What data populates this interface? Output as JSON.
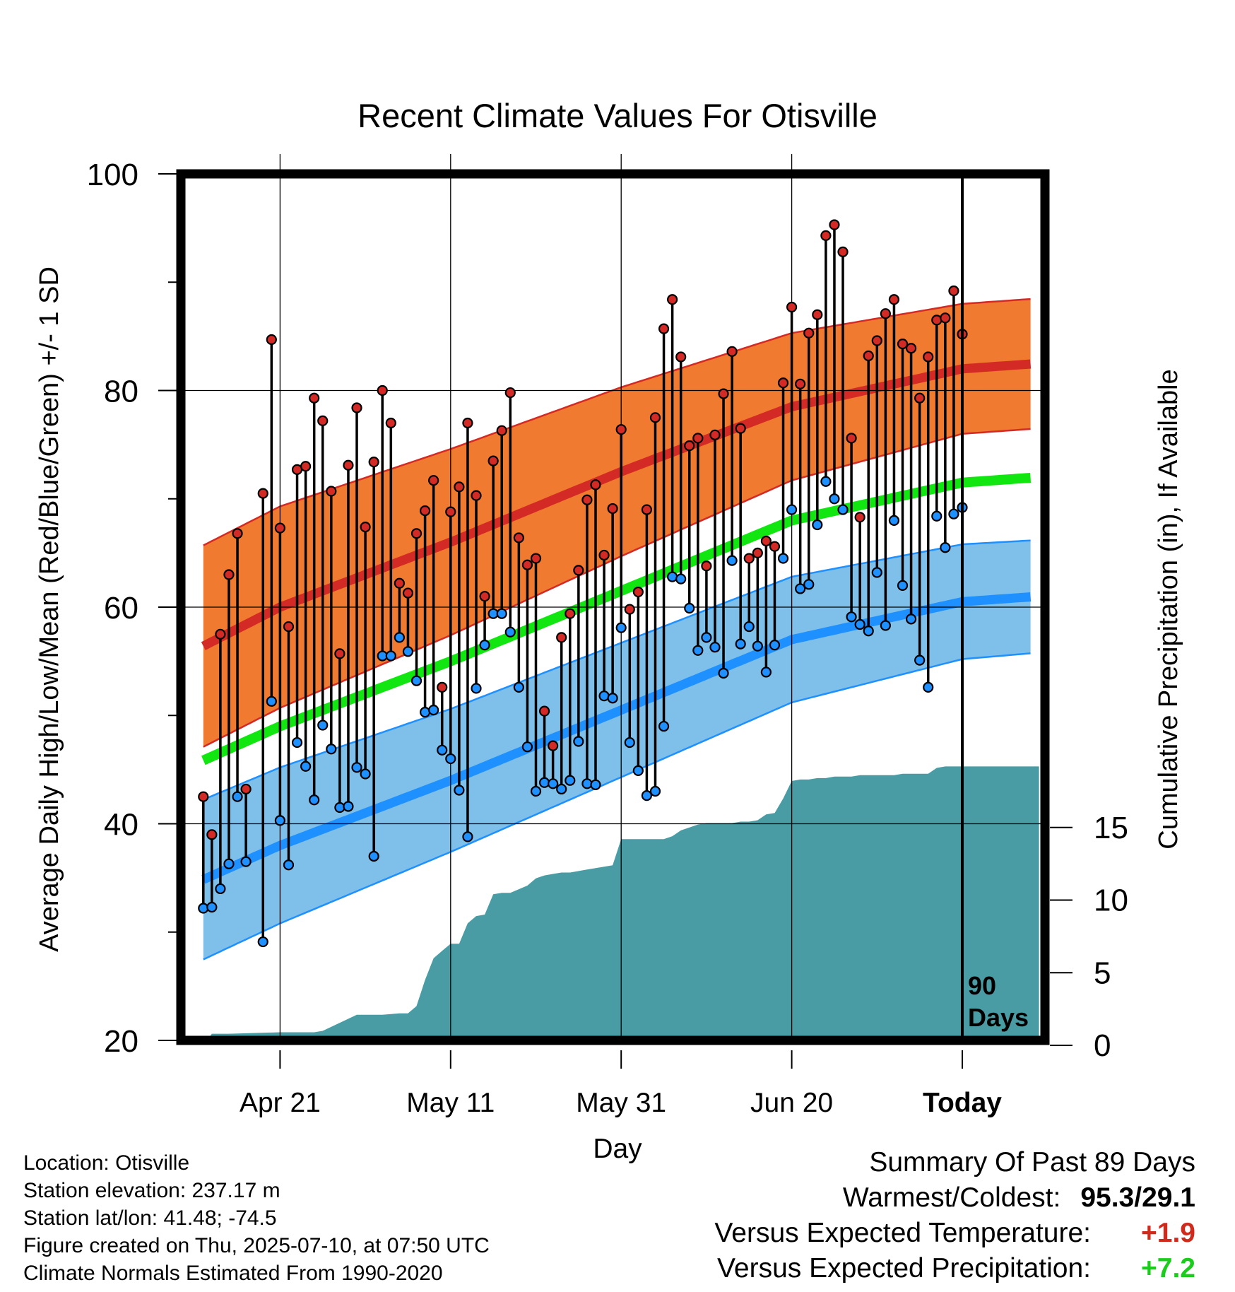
{
  "chart_data": {
    "type": "line",
    "title": "Recent Climate Values For Otisville",
    "xlabel": "Day",
    "ylabel": "Average Daily High/Low/Mean (Red/Blue/Green) +/- 1 SD",
    "y2label": "Cumulative Precipitation (in), If Available",
    "ylim": [
      20,
      100
    ],
    "y_ticks": [
      "20",
      "40",
      "60",
      "80",
      "100"
    ],
    "y2lim": [
      0,
      60
    ],
    "y2_ticks": [
      "0",
      "5",
      "10",
      "15"
    ],
    "x_range_days": [
      -89,
      0
    ],
    "x_ticks": [
      {
        "day": -80,
        "label": "Apr 21"
      },
      {
        "day": -60,
        "label": "May 11"
      },
      {
        "day": -40,
        "label": "May 31"
      },
      {
        "day": -20,
        "label": "Jun 20"
      },
      {
        "day": 0,
        "label": "Today"
      }
    ],
    "today_label": "90 Days",
    "grid": true,
    "colors": {
      "high_band": "#f07a30",
      "high_mean": "#d42a25",
      "low_band": "#7fc0ea",
      "low_mean": "#1e90ff",
      "mean_line": "#11e611",
      "precip": "#4a9ca4",
      "high_dot": "#d42a25",
      "low_dot": "#1e90ff"
    },
    "normals": {
      "days": [
        -90,
        -80,
        -60,
        -40,
        -20,
        0,
        9
      ],
      "high_mean": [
        56,
        60,
        66,
        72.5,
        78.5,
        82,
        82.5
      ],
      "high_sd": [
        9.3,
        9.3,
        8.6,
        7.8,
        6.8,
        6.0,
        6.0
      ],
      "low_mean": [
        34.5,
        38,
        44,
        50.5,
        57,
        60.5,
        61
      ],
      "low_sd": [
        7.4,
        7.2,
        6.6,
        6.2,
        5.8,
        5.3,
        5.2
      ],
      "mean": [
        45.5,
        49,
        55,
        61.5,
        68,
        71.5,
        72
      ]
    },
    "daily": {
      "start_day": -89,
      "high": [
        42.5,
        39,
        57.5,
        63,
        66.8,
        43.2,
        null,
        70.5,
        84.7,
        67.3,
        58.2,
        72.7,
        73,
        79.3,
        77.2,
        70.7,
        55.7,
        73.1,
        78.4,
        67.4,
        73.4,
        80,
        77,
        62.2,
        61.3,
        66.8,
        68.9,
        71.7,
        52.6,
        68.8,
        71.1,
        77,
        70.3,
        61,
        73.5,
        76.3,
        79.8,
        66.4,
        63.9,
        64.5,
        50.4,
        47.2,
        57.2,
        59.4,
        63.4,
        69.9,
        71.3,
        64.8,
        69.1,
        76.4,
        59.8,
        61.4,
        69,
        77.5,
        85.7,
        88.4,
        83.1,
        74.9,
        75.6,
        63.8,
        75.9,
        79.7,
        83.6,
        76.5,
        64.5,
        65,
        66.1,
        65.6,
        80.7,
        87.7,
        80.6,
        85.3,
        87,
        94.3,
        95.3,
        92.8,
        75.6,
        68.3,
        83.2,
        84.6,
        87.1,
        88.4,
        84.3,
        83.9,
        79.3,
        83.1,
        86.5,
        86.7,
        89.2,
        85.2
      ],
      "low": [
        32.2,
        32.3,
        34,
        36.3,
        42.5,
        36.5,
        null,
        29.1,
        51.3,
        40.3,
        36.2,
        47.5,
        45.3,
        42.2,
        49.1,
        46.9,
        41.5,
        41.6,
        45.2,
        44.6,
        37,
        55.5,
        55.5,
        57.2,
        55.9,
        53.2,
        50.3,
        50.5,
        46.8,
        46,
        43.1,
        38.8,
        52.5,
        56.5,
        59.4,
        59.4,
        57.7,
        52.6,
        47.1,
        43,
        43.8,
        43.7,
        43.2,
        44,
        47.6,
        43.7,
        43.6,
        51.8,
        51.6,
        58.1,
        47.5,
        44.9,
        42.6,
        43,
        49,
        62.8,
        62.6,
        59.9,
        56,
        57.2,
        56.3,
        53.9,
        64.3,
        56.6,
        58.2,
        56.4,
        54,
        56.5,
        64.5,
        69,
        61.7,
        62.1,
        67.6,
        71.6,
        70,
        69,
        59.1,
        58.4,
        57.8,
        63.2,
        58.3,
        68,
        62,
        58.9,
        55.1,
        52.6,
        68.4,
        65.5,
        68.6,
        69.2
      ]
    },
    "precip_cumulative": {
      "days": [
        -89,
        -88,
        -87,
        -86,
        -80,
        -76,
        -75,
        -71,
        -69,
        -68,
        -66,
        -65,
        -64,
        -63,
        -62,
        -61,
        -60,
        -59,
        -58,
        -57,
        -56,
        -55,
        -54,
        -53,
        -51,
        -50,
        -49,
        -48,
        -47,
        -46,
        -45,
        -44,
        -43,
        -42,
        -41,
        -40,
        -39,
        -38,
        -37,
        -36,
        -35,
        -34,
        -33,
        -32,
        -31,
        -30,
        -29,
        -28,
        -27,
        -26,
        -25,
        -24,
        -23,
        -22,
        -21,
        -20,
        -19,
        -18,
        -17,
        -16,
        -15,
        -14,
        -13,
        -12,
        -11,
        -10,
        -9,
        -8,
        -7,
        -6,
        -5,
        -4,
        -3,
        -2,
        -1,
        0,
        9
      ],
      "values": [
        0.0,
        0.8,
        0.8,
        0.8,
        0.9,
        0.9,
        1.0,
        2.1,
        2.1,
        2.1,
        2.2,
        2.2,
        2.7,
        4.5,
        6.0,
        6.5,
        7.0,
        7.0,
        8.4,
        8.9,
        9.0,
        10.4,
        10.5,
        10.5,
        11.0,
        11.5,
        11.7,
        11.8,
        11.9,
        11.9,
        12.0,
        12.1,
        12.2,
        12.3,
        12.4,
        14.2,
        14.2,
        14.2,
        14.2,
        14.2,
        14.2,
        14.4,
        14.8,
        15.0,
        15.2,
        15.3,
        15.3,
        15.3,
        15.3,
        15.4,
        15.4,
        15.5,
        15.9,
        16.0,
        17.0,
        18.2,
        18.3,
        18.3,
        18.4,
        18.4,
        18.5,
        18.5,
        18.5,
        18.6,
        18.6,
        18.6,
        18.6,
        18.6,
        18.7,
        18.7,
        18.7,
        18.7,
        19.1,
        19.2,
        19.2,
        19.2,
        19.2
      ]
    }
  },
  "info": {
    "location": "Location: Otisville",
    "elevation": "Station elevation: 237.17 m",
    "latlon": "Station lat/lon: 41.48; -74.5",
    "created": "Figure created on Thu, 2025-07-10, at 07:50 UTC",
    "normals": "Climate Normals Estimated From 1990-2020"
  },
  "summary": {
    "title": "Summary Of Past 89 Days",
    "warm_cold_label": "Warmest/Coldest:",
    "warm_cold_value": "95.3/29.1",
    "temp_label": "Versus Expected Temperature:",
    "temp_value": "+1.9",
    "precip_label": "Versus Expected Precipitation:",
    "precip_value": "+7.2"
  }
}
